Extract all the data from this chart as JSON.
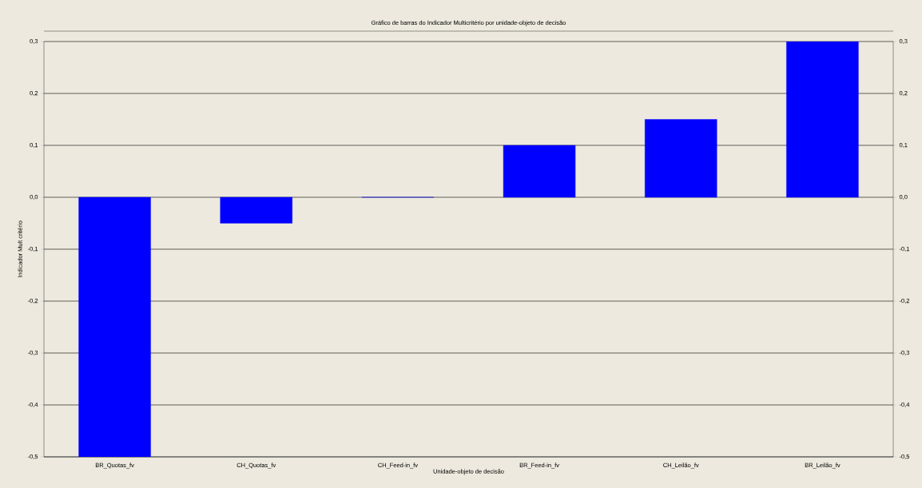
{
  "chart_data": {
    "type": "bar",
    "title": "Gráfico de barras do Indicador Multicritério por unidade-objeto de decisão",
    "xlabel": "Unidade-objeto de decisão",
    "ylabel": "Indicador Mult critério",
    "categories": [
      "BR_Quotas_fv",
      "CH_Quotas_fv",
      "CH_Feed-in_fv",
      "BR_Feed-in_fv",
      "CH_Leilão_fv",
      "BR_Leilão_fv"
    ],
    "values": [
      -0.5,
      -0.05,
      0,
      0.1,
      0.15,
      0.3
    ],
    "color": "#0000ff",
    "ylim": [
      -0.5,
      0.3
    ],
    "yticks": [
      {
        "value": -0.5,
        "label": "-0,5"
      },
      {
        "value": -0.4,
        "label": "-0,4"
      },
      {
        "value": -0.3,
        "label": "-0,3"
      },
      {
        "value": -0.2,
        "label": "-0,2"
      },
      {
        "value": -0.1,
        "label": "-0,1"
      },
      {
        "value": 0,
        "label": "0,0"
      },
      {
        "value": 0.1,
        "label": "0,1"
      },
      {
        "value": 0.2,
        "label": "0,2"
      },
      {
        "value": 0.3,
        "label": "0,3"
      }
    ],
    "y2lim": [
      -0.5,
      0.3
    ],
    "y2ticks": [
      {
        "value": -0.5,
        "label": "-0,5"
      },
      {
        "value": -0.4,
        "label": "-0,4"
      },
      {
        "value": -0.3,
        "label": "-0,3"
      },
      {
        "value": -0.2,
        "label": "-0,2"
      },
      {
        "value": -0.1,
        "label": "-0,1"
      },
      {
        "value": 0,
        "label": "0,0"
      },
      {
        "value": 0.1,
        "label": "0,1"
      },
      {
        "value": 0.2,
        "label": "0,2"
      },
      {
        "value": 0.3,
        "label": "0,3"
      }
    ],
    "grid": "y"
  }
}
